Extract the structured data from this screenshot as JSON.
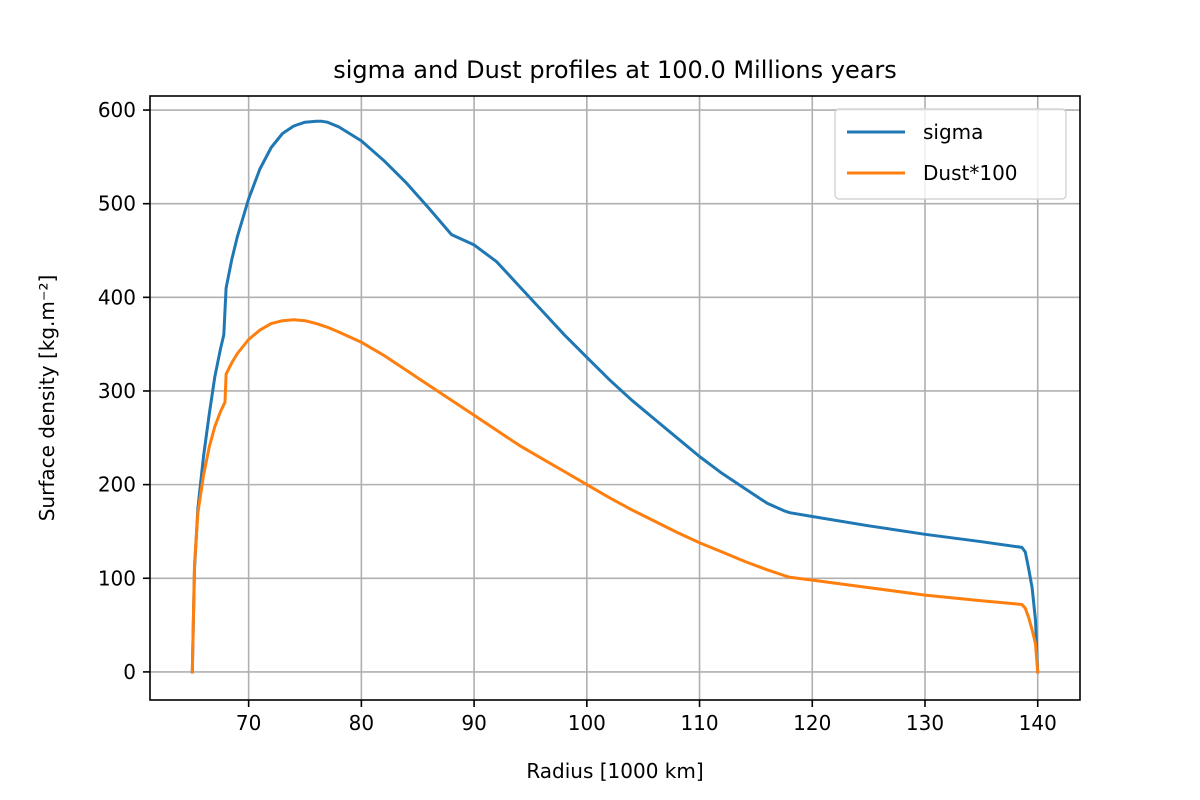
{
  "chart_data": {
    "type": "line",
    "title": "sigma and Dust profiles at 100.0 Millions years",
    "xlabel": "Radius [1000 km]",
    "ylabel": "Surface density [kg.m⁻²]",
    "xlim": [
      61.25,
      143.75
    ],
    "ylim": [
      -30,
      615
    ],
    "xticks": [
      70,
      80,
      90,
      100,
      110,
      120,
      130,
      140
    ],
    "yticks": [
      0,
      100,
      200,
      300,
      400,
      500,
      600
    ],
    "grid": true,
    "legend_position": "upper right",
    "series": [
      {
        "name": "sigma",
        "color": "#1f77b4",
        "x": [
          65,
          65.2,
          65.5,
          66,
          66.5,
          67,
          67.5,
          67.8,
          68,
          68.5,
          69,
          70,
          71,
          72,
          73,
          74,
          75,
          76,
          76.5,
          77,
          78,
          80,
          82,
          84,
          86,
          88,
          90,
          92,
          94,
          96,
          98,
          100,
          102,
          104,
          106,
          108,
          110,
          112,
          114,
          116,
          117.5,
          118,
          120,
          125,
          130,
          135,
          138.6,
          138.9,
          139.2,
          139.5,
          139.8,
          140
        ],
        "y": [
          0,
          110,
          175,
          230,
          275,
          315,
          345,
          360,
          410,
          440,
          465,
          505,
          537,
          560,
          575,
          583,
          587,
          588,
          588,
          587,
          582,
          567,
          546,
          522,
          495,
          467,
          456,
          438,
          412,
          386,
          360,
          336,
          312,
          290,
          270,
          250,
          230,
          212,
          196,
          180,
          172,
          170,
          166,
          156,
          147,
          139,
          133,
          128,
          110,
          90,
          55,
          0
        ]
      },
      {
        "name": "Dust*100",
        "color": "#ff7f0e",
        "x": [
          65,
          65.2,
          65.5,
          66,
          66.5,
          67,
          67.5,
          67.9,
          68,
          68.5,
          69,
          70,
          71,
          72,
          73,
          74,
          75,
          76,
          77,
          78,
          80,
          82,
          84,
          86,
          88,
          90,
          92,
          94,
          96,
          98,
          100,
          102,
          104,
          106,
          108,
          110,
          112,
          114,
          116,
          117.5,
          118,
          120,
          125,
          130,
          135,
          138.6,
          138.9,
          139.2,
          139.5,
          139.8,
          140
        ],
        "y": [
          0,
          115,
          170,
          210,
          240,
          262,
          278,
          288,
          318,
          330,
          340,
          355,
          365,
          372,
          375,
          376,
          375,
          372,
          368,
          363,
          352,
          338,
          322,
          306,
          290,
          274,
          258,
          242,
          228,
          214,
          200,
          186,
          173,
          161,
          149,
          138,
          128,
          118,
          109,
          103,
          101,
          98,
          90,
          82,
          76,
          72,
          68,
          58,
          45,
          30,
          0
        ]
      }
    ]
  }
}
